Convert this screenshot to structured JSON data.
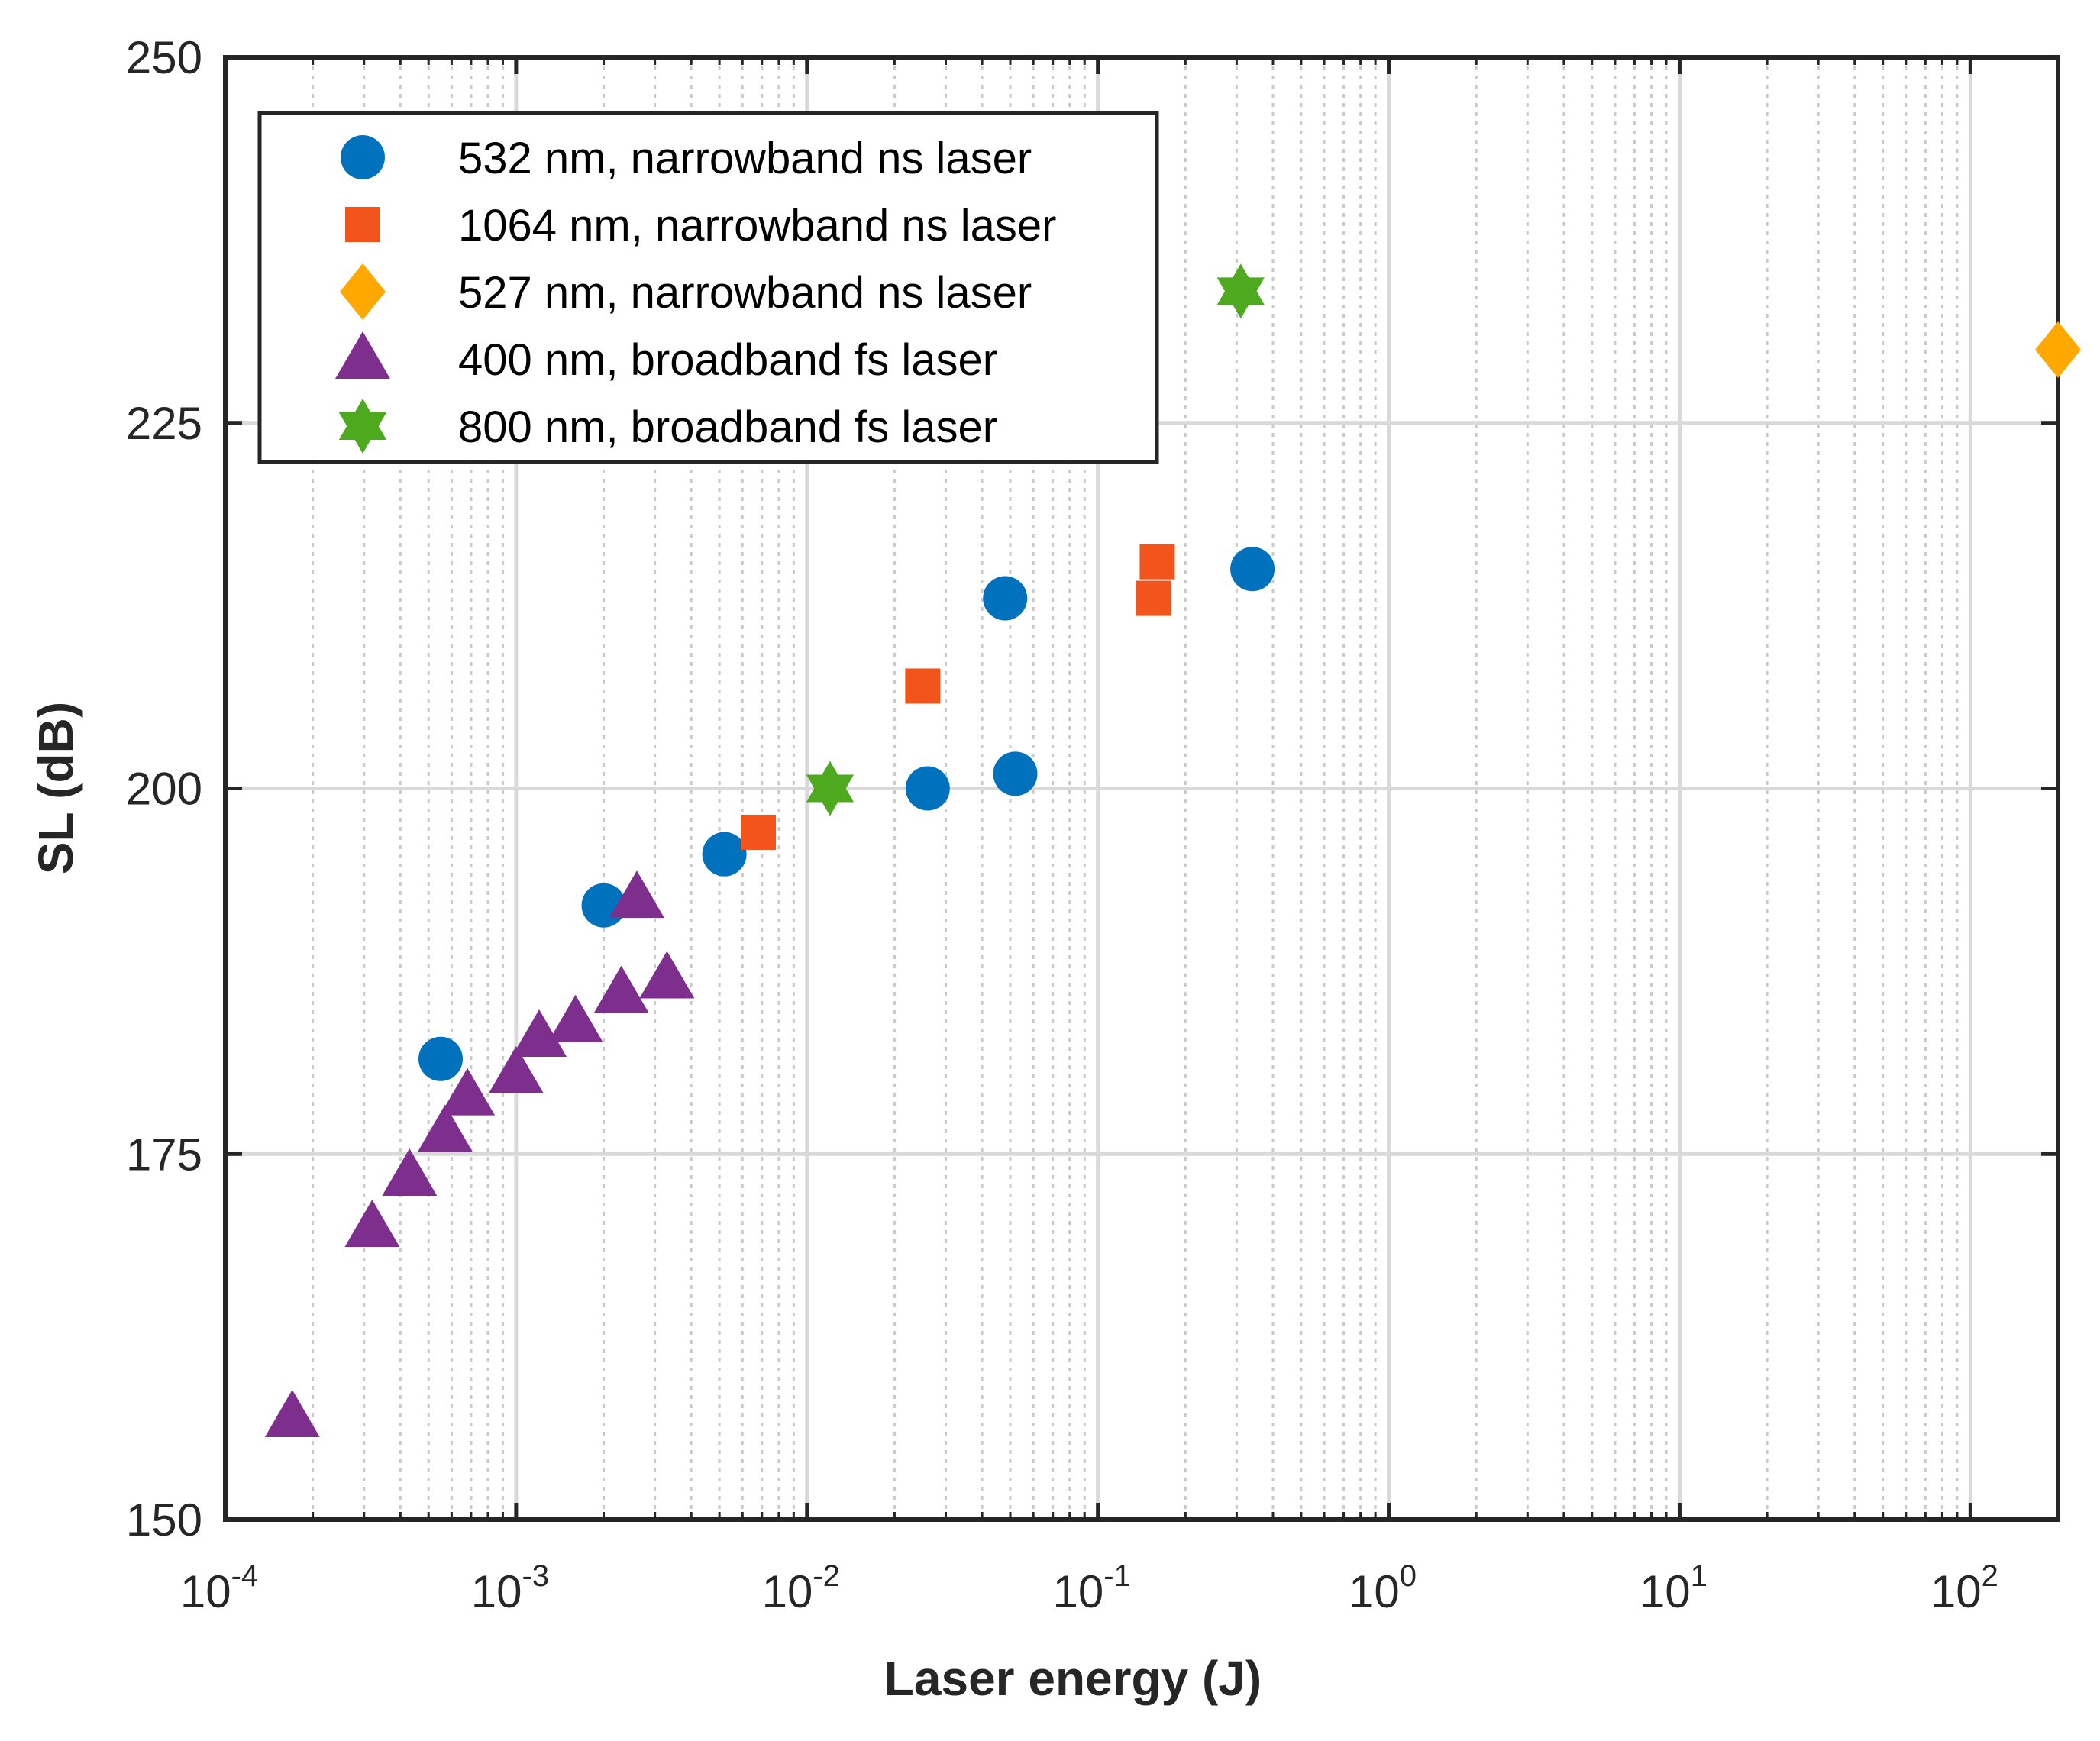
{
  "chart_data": {
    "type": "scatter",
    "xlabel": "Laser energy (J)",
    "ylabel": "SL (dB)",
    "xscale": "log",
    "xlim": [
      0.0001,
      200
    ],
    "ylim": [
      150,
      250
    ],
    "x_ticks": [
      {
        "value": 0.0001,
        "base": "10",
        "exp": "-4"
      },
      {
        "value": 0.001,
        "base": "10",
        "exp": "-3"
      },
      {
        "value": 0.01,
        "base": "10",
        "exp": "-2"
      },
      {
        "value": 0.1,
        "base": "10",
        "exp": "-1"
      },
      {
        "value": 1,
        "base": "10",
        "exp": "0"
      },
      {
        "value": 10,
        "base": "10",
        "exp": "1"
      },
      {
        "value": 100,
        "base": "10",
        "exp": "2"
      }
    ],
    "y_ticks": [
      {
        "value": 150,
        "label": "150"
      },
      {
        "value": 175,
        "label": "175"
      },
      {
        "value": 200,
        "label": "200"
      },
      {
        "value": 225,
        "label": "225"
      },
      {
        "value": 250,
        "label": "250"
      }
    ],
    "grid": true,
    "legend_position": "top-left",
    "series": [
      {
        "name": "532 nm, narrowband ns laser",
        "marker": "circle",
        "color": "#0072BD",
        "points": [
          {
            "x": 0.00055,
            "y": 181.5
          },
          {
            "x": 0.002,
            "y": 192
          },
          {
            "x": 0.0052,
            "y": 195.5
          },
          {
            "x": 0.026,
            "y": 200
          },
          {
            "x": 0.048,
            "y": 213
          },
          {
            "x": 0.052,
            "y": 201
          },
          {
            "x": 0.34,
            "y": 215
          }
        ]
      },
      {
        "name": "1064 nm, narrowband ns laser",
        "marker": "square",
        "color": "#F2541B",
        "points": [
          {
            "x": 0.0068,
            "y": 197
          },
          {
            "x": 0.025,
            "y": 207
          },
          {
            "x": 0.155,
            "y": 213
          },
          {
            "x": 0.16,
            "y": 215.5
          }
        ]
      },
      {
        "name": "527 nm, narrowband ns laser",
        "marker": "diamond",
        "color": "#FFA800",
        "points": [
          {
            "x": 200,
            "y": 230
          }
        ]
      },
      {
        "name": "400 nm, broadband fs laser",
        "marker": "triangle",
        "color": "#7E2F8E",
        "points": [
          {
            "x": 0.00017,
            "y": 157
          },
          {
            "x": 0.00032,
            "y": 170
          },
          {
            "x": 0.00043,
            "y": 173.5
          },
          {
            "x": 0.00057,
            "y": 176.5
          },
          {
            "x": 0.00068,
            "y": 179
          },
          {
            "x": 0.001,
            "y": 180.5
          },
          {
            "x": 0.0012,
            "y": 183
          },
          {
            "x": 0.0016,
            "y": 184
          },
          {
            "x": 0.0023,
            "y": 186
          },
          {
            "x": 0.0026,
            "y": 192.5
          },
          {
            "x": 0.0033,
            "y": 187
          }
        ]
      },
      {
        "name": "800 nm, broadband fs laser",
        "marker": "hexagram",
        "color": "#4DAA1E",
        "points": [
          {
            "x": 0.012,
            "y": 200
          },
          {
            "x": 0.31,
            "y": 234
          }
        ]
      }
    ]
  }
}
